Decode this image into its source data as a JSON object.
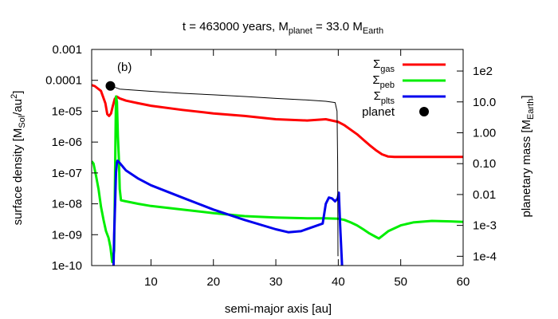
{
  "chart_data": {
    "type": "line",
    "title": {
      "prefix": "t = 463000 years, M",
      "sub1": "planet",
      "mid": " = 33.0 M",
      "sub2": "Earth"
    },
    "panel_label": "(b)",
    "xlabel": "semi-major axis [au]",
    "ylabel_left": {
      "prefix": "surface density [M",
      "sub": "Sol",
      "mid": "/au",
      "sup": "2",
      "suffix": "]"
    },
    "ylabel_right": {
      "prefix": "planetary mass [M",
      "sub": "Earth",
      "suffix": "]"
    },
    "xlim": [
      0.5,
      60
    ],
    "ylim_left": [
      1e-10,
      0.001
    ],
    "ylim_right": [
      5e-05,
      500
    ],
    "y_scale": "log",
    "grid": false,
    "legend_position": "top-right",
    "x_ticks": [
      {
        "value": 10,
        "label": "10"
      },
      {
        "value": 20,
        "label": "20"
      },
      {
        "value": 30,
        "label": "30"
      },
      {
        "value": 40,
        "label": "40"
      },
      {
        "value": 50,
        "label": "50"
      },
      {
        "value": 60,
        "label": "60"
      }
    ],
    "y_ticks_left": [
      {
        "value": 0.001,
        "label": "0.001"
      },
      {
        "value": 0.0001,
        "label": "0.0001"
      },
      {
        "value": 1e-05,
        "label": "1e-05"
      },
      {
        "value": 1e-06,
        "label": "1e-06"
      },
      {
        "value": 1e-07,
        "label": "1e-07"
      },
      {
        "value": 1e-08,
        "label": "1e-08"
      },
      {
        "value": 1e-09,
        "label": "1e-09"
      },
      {
        "value": 1e-10,
        "label": "1e-10"
      }
    ],
    "y_ticks_right": [
      {
        "value": 100,
        "label": "1e2"
      },
      {
        "value": 10,
        "label": "10.0"
      },
      {
        "value": 1,
        "label": "1.00"
      },
      {
        "value": 0.1,
        "label": "0.10"
      },
      {
        "value": 0.01,
        "label": "0.01"
      },
      {
        "value": 0.001,
        "label": "1e-3"
      },
      {
        "value": 0.0001,
        "label": "1e-4"
      }
    ],
    "series": [
      {
        "name": {
          "main": "Σ",
          "sub": "gas"
        },
        "color": "#ff0000",
        "axis": "left",
        "x": [
          0.5,
          1,
          2,
          2.7,
          3.0,
          3.3,
          3.6,
          3.9,
          4.2,
          4.5,
          5,
          6,
          8,
          10,
          15,
          20,
          25,
          30,
          35,
          38,
          40,
          41,
          42,
          43,
          44,
          45,
          46,
          47,
          48,
          49,
          50,
          52,
          55,
          58,
          60
        ],
        "y": [
          7e-05,
          6.5e-05,
          4.5e-05,
          1.8e-05,
          8e-06,
          7e-06,
          8.5e-06,
          1.5e-05,
          2.5e-05,
          3e-05,
          2.6e-05,
          2.2e-05,
          1.8e-05,
          1.5e-05,
          1.1e-05,
          8.5e-06,
          7e-06,
          5.5e-06,
          5e-06,
          5.5e-06,
          4.5e-06,
          3.5e-06,
          2.5e-06,
          1.8e-06,
          1.2e-06,
          8e-07,
          5.5e-07,
          4e-07,
          3.4e-07,
          3.3e-07,
          3.3e-07,
          3.3e-07,
          3.3e-07,
          3.3e-07,
          3.3e-07
        ]
      },
      {
        "name": {
          "main": "Σ",
          "sub": "peb"
        },
        "color": "#00ee00",
        "axis": "left",
        "x": [
          0.5,
          0.8,
          1.2,
          1.6,
          2.0,
          2.4,
          2.8,
          3.2,
          3.5,
          3.8,
          4.1,
          4.4,
          4.55,
          4.7,
          4.85,
          5.0,
          5.2,
          6,
          8,
          10,
          15,
          20,
          25,
          30,
          35,
          38,
          40,
          41,
          42,
          43,
          44,
          45,
          46,
          46.5,
          47,
          48,
          50,
          52,
          55,
          58,
          60
        ],
        "y": [
          2.4e-07,
          2e-07,
          8e-08,
          3e-08,
          8e-09,
          3e-09,
          1.3e-09,
          8e-10,
          4e-10,
          1.3e-10,
          3e-10,
          3e-05,
          2e-05,
          1.5e-06,
          3e-07,
          3e-08,
          1.3e-08,
          1.2e-08,
          1e-08,
          8.5e-09,
          6.5e-09,
          5e-09,
          4e-09,
          3.6e-09,
          3.4e-09,
          3.4e-09,
          3.3e-09,
          3e-09,
          2.5e-09,
          2e-09,
          1.5e-09,
          1.1e-09,
          8.5e-10,
          7.5e-10,
          9e-10,
          1.3e-09,
          2e-09,
          2.5e-09,
          2.8e-09,
          2.7e-09,
          2.6e-09
        ]
      },
      {
        "name": {
          "main": "Σ",
          "sub": "plts"
        },
        "color": "#0000ee",
        "axis": "left",
        "x": [
          4.0,
          4.1,
          4.25,
          4.4,
          4.55,
          4.65,
          5,
          6,
          8,
          10,
          15,
          20,
          25,
          30,
          32,
          34,
          36,
          37.5,
          38,
          38.5,
          39,
          39.5,
          39.9,
          40.1,
          40.3,
          40.6,
          40.8
        ],
        "y": [
          8e-11,
          1e-09,
          1e-08,
          1e-07,
          2.2e-07,
          2.5e-07,
          2.1e-07,
          1.2e-07,
          6.5e-08,
          4e-08,
          1.6e-08,
          6.5e-09,
          3e-09,
          1.5e-09,
          1.2e-09,
          1.3e-09,
          1.8e-09,
          2.3e-09,
          1e-08,
          1.6e-08,
          1.5e-08,
          1.2e-08,
          1.5e-08,
          2.3e-08,
          2e-09,
          1e-10,
          8e-11
        ]
      },
      {
        "name": {
          "main": "planet"
        },
        "color": "#000000",
        "axis": "right",
        "marker": "point",
        "x": [
          3.5
        ],
        "y": [
          33.0
        ]
      },
      {
        "color": "#000000",
        "axis": "right",
        "style": "thin",
        "x": [
          3.6,
          5,
          10,
          15,
          20,
          25,
          30,
          35,
          38,
          39.5,
          39.8,
          39.9,
          39.95
        ],
        "y": [
          33.0,
          26,
          22,
          19,
          17,
          15,
          13,
          11.5,
          10.5,
          9.5,
          5,
          0.1,
          0.0001
        ]
      }
    ]
  }
}
